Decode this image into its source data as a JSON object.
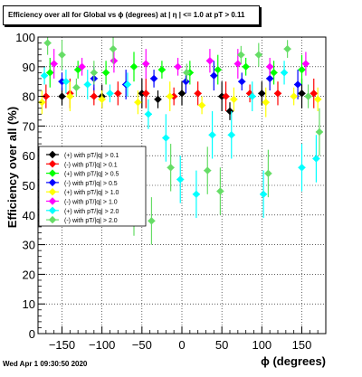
{
  "footer": {
    "timestamp": "Wed Apr  1 09:30:50 2020"
  },
  "chart_data": {
    "type": "scatter",
    "title": "Efficiency over all for Global vs ϕ (degrees) at | η | <= 1.0 at pT > 0.11",
    "xlabel": "ϕ (degrees)",
    "ylabel": "Efficiency over all (%)",
    "xlim": [
      -180,
      180
    ],
    "ylim": [
      0,
      100
    ],
    "xticks": [
      "−150",
      "−100",
      "−50",
      "0",
      "50",
      "100",
      "150"
    ],
    "xtick_values": [
      -150,
      -100,
      -50,
      0,
      50,
      100,
      150
    ],
    "yticks": [
      "0",
      "10",
      "20",
      "30",
      "40",
      "50",
      "60",
      "70",
      "80",
      "90",
      "100"
    ],
    "ytick_values": [
      0,
      10,
      20,
      30,
      40,
      50,
      60,
      70,
      80,
      90,
      100
    ],
    "grid": true,
    "legend_position": "left-middle",
    "series": [
      {
        "name": "(+) with pT/|q| > 0.1",
        "color": "#000000",
        "marker": "diamond",
        "points": [
          [
            -150,
            80
          ],
          [
            -100,
            80
          ],
          [
            -50,
            81
          ],
          [
            -30,
            79
          ],
          [
            0,
            81
          ],
          [
            50,
            80
          ],
          [
            60,
            75
          ],
          [
            100,
            81
          ],
          [
            150,
            81
          ]
        ]
      },
      {
        "name": "(-) with pT/|q| > 0.1",
        "color": "#ff0000",
        "marker": "diamond",
        "points": [
          [
            -170,
            80
          ],
          [
            -140,
            81
          ],
          [
            -110,
            80
          ],
          [
            -80,
            81
          ],
          [
            -45,
            81
          ],
          [
            -10,
            80
          ],
          [
            20,
            81
          ],
          [
            55,
            80
          ],
          [
            85,
            81
          ],
          [
            120,
            81
          ],
          [
            165,
            81
          ]
        ]
      },
      {
        "name": "(+) with pT/|q| > 0.5",
        "color": "#00ff00",
        "marker": "diamond",
        "points": [
          [
            -165,
            88
          ],
          [
            -130,
            89
          ],
          [
            -95,
            88
          ],
          [
            -60,
            90
          ],
          [
            -25,
            89
          ],
          [
            10,
            88
          ],
          [
            45,
            89
          ],
          [
            80,
            90
          ],
          [
            115,
            88
          ],
          [
            150,
            89
          ]
        ]
      },
      {
        "name": "(-) with pT/|q| > 0.5",
        "color": "#0000ff",
        "marker": "diamond",
        "points": [
          [
            -150,
            85
          ],
          [
            -110,
            86
          ],
          [
            -70,
            84
          ],
          [
            -35,
            86
          ],
          [
            5,
            85
          ],
          [
            40,
            87
          ],
          [
            75,
            85
          ],
          [
            110,
            86
          ],
          [
            145,
            84
          ]
        ]
      },
      {
        "name": "(+) with pT/|q| > 1.0",
        "color": "#ffff00",
        "marker": "diamond",
        "points": [
          [
            -175,
            78
          ],
          [
            -140,
            80
          ],
          [
            -100,
            79
          ],
          [
            -55,
            78
          ],
          [
            -15,
            80
          ],
          [
            25,
            77
          ],
          [
            65,
            79
          ],
          [
            105,
            78
          ],
          [
            140,
            80
          ],
          [
            170,
            79
          ]
        ]
      },
      {
        "name": "(-) with pT/|q| > 1.0",
        "color": "#ff00ff",
        "marker": "diamond",
        "points": [
          [
            -160,
            91
          ],
          [
            -125,
            90
          ],
          [
            -85,
            92
          ],
          [
            -45,
            91
          ],
          [
            -5,
            90
          ],
          [
            35,
            92
          ],
          [
            70,
            91
          ],
          [
            110,
            90
          ],
          [
            155,
            91
          ]
        ]
      },
      {
        "name": "(+) with pT/|q| > 2.0",
        "color": "#00ffff",
        "marker": "diamond",
        "points": [
          [
            -172,
            87
          ],
          [
            -145,
            85
          ],
          [
            -118,
            84
          ],
          [
            -90,
            81
          ],
          [
            -68,
            84
          ],
          [
            -42,
            74
          ],
          [
            -20,
            66
          ],
          [
            -2,
            52
          ],
          [
            18,
            47
          ],
          [
            38,
            67
          ],
          [
            62,
            67
          ],
          [
            88,
            80
          ],
          [
            102,
            47
          ],
          [
            128,
            88
          ],
          [
            150,
            56
          ],
          [
            168,
            59
          ]
        ]
      },
      {
        "name": "(-) with pT/|q| > 2.0",
        "color": "#66dd66",
        "marker": "diamond",
        "points": [
          [
            -168,
            98
          ],
          [
            -150,
            94
          ],
          [
            -132,
            83
          ],
          [
            -110,
            88
          ],
          [
            -86,
            96
          ],
          [
            -60,
            41
          ],
          [
            -38,
            38
          ],
          [
            -14,
            56
          ],
          [
            6,
            88
          ],
          [
            32,
            55
          ],
          [
            48,
            48
          ],
          [
            74,
            94
          ],
          [
            96,
            94
          ],
          [
            108,
            54
          ],
          [
            132,
            96
          ],
          [
            158,
            80
          ],
          [
            172,
            68
          ]
        ]
      }
    ]
  }
}
